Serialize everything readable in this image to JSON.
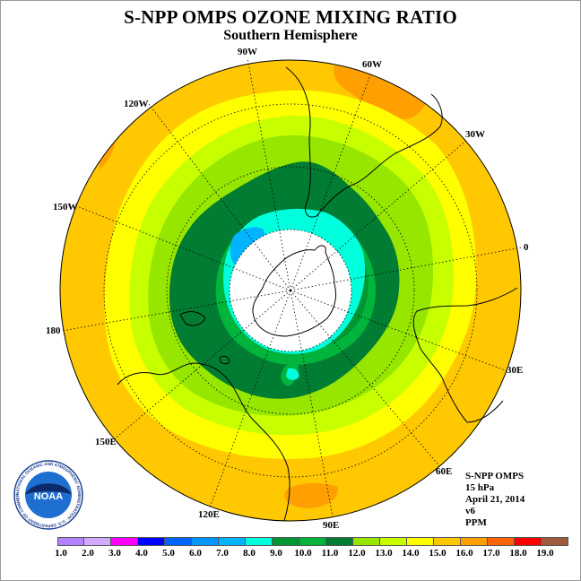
{
  "header": {
    "title": "S-NPP OMPS OZONE MIXING RATIO",
    "subtitle": "Southern Hemisphere"
  },
  "map": {
    "projection": "south polar stereographic",
    "center_latitude": -90,
    "longitude_labels": [
      "90W",
      "60W",
      "30W",
      "0",
      "30E",
      "60E",
      "90E",
      "120E",
      "150E",
      "180",
      "150W",
      "120W"
    ],
    "no_data_polar_cap": true,
    "ocean_color": "#ffc800",
    "land_outline_color": "#000000",
    "gridline_style": "dotted"
  },
  "info": {
    "lines": [
      "S-NPP OMPS",
      "15 hPa",
      "April 21, 2014",
      "v6",
      "PPM"
    ]
  },
  "colorbar": {
    "units": "PPM",
    "tick_labels": [
      "1.0",
      "2.0",
      "3.0",
      "4.0",
      "5.0",
      "6.0",
      "7.0",
      "8.0",
      "9.0",
      "10.0",
      "11.0",
      "12.0",
      "13.0",
      "14.0",
      "15.0",
      "16.0",
      "17.0",
      "18.0",
      "19.0"
    ],
    "colors": [
      "#b482ff",
      "#d2aaff",
      "#ff00ff",
      "#0000ff",
      "#0064ff",
      "#0096ff",
      "#00b4ff",
      "#00ffdc",
      "#009632",
      "#00b43c",
      "#007d32",
      "#96e600",
      "#c8ff00",
      "#ffff00",
      "#ffc800",
      "#ffa000",
      "#ff6400",
      "#ff0000",
      "#a05a3c"
    ]
  },
  "logo": {
    "text": "NOAA",
    "ring_text": "NATIONAL OCEANIC AND ATMOSPHERIC ADMINISTRATION · U.S. DEPARTMENT OF COMMERCE"
  }
}
